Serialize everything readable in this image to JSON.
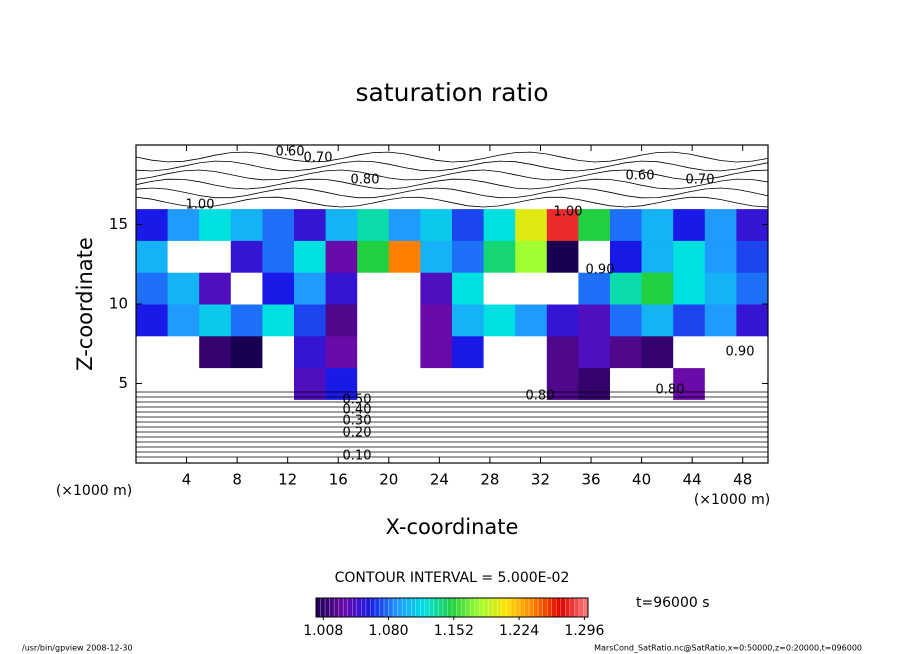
{
  "chart_data": {
    "type": "contour",
    "title": "saturation ratio",
    "x_label": "X-coordinate",
    "y_label": "Z-coordinate",
    "x_unit": "(×1000 m)",
    "y_unit": "(×1000 m)",
    "xlim": [
      0,
      50
    ],
    "ylim": [
      0,
      20
    ],
    "xticks": [
      4,
      8,
      12,
      16,
      20,
      24,
      28,
      32,
      36,
      40,
      44,
      48
    ],
    "yticks": [
      5,
      10,
      15
    ],
    "x": [
      1.25,
      3.75,
      6.25,
      8.75,
      11.25,
      13.75,
      16.25,
      18.75,
      21.25,
      23.75,
      26.25,
      28.75,
      31.25,
      33.75,
      36.25,
      38.75,
      41.25,
      43.75,
      46.25,
      48.75
    ],
    "z": [
      1,
      3,
      5,
      7,
      9,
      11,
      13,
      15,
      17,
      19
    ],
    "values": [
      [
        0.12,
        0.12,
        0.12,
        0.12,
        0.12,
        0.12,
        0.12,
        0.12,
        0.12,
        0.12,
        0.12,
        0.12,
        0.12,
        0.12,
        0.12,
        0.12,
        0.12,
        0.12,
        0.12,
        0.12
      ],
      [
        0.45,
        0.45,
        0.45,
        0.45,
        0.45,
        0.45,
        0.45,
        0.45,
        0.45,
        0.45,
        0.45,
        0.45,
        0.45,
        0.45,
        0.45,
        0.45,
        0.45,
        0.45,
        0.45,
        0.45
      ],
      [
        0.95,
        0.96,
        0.97,
        0.96,
        0.98,
        1.04,
        1.06,
        0.99,
        0.92,
        0.97,
        0.96,
        0.98,
        0.97,
        1.02,
        1.01,
        0.97,
        0.98,
        1.03,
        0.96,
        0.95
      ],
      [
        0.97,
        0.98,
        1.01,
        1.0,
        0.99,
        1.05,
        1.03,
        0.9,
        0.88,
        1.03,
        1.06,
        0.99,
        0.98,
        1.02,
        1.04,
        1.02,
        1.01,
        0.98,
        0.97,
        0.97
      ],
      [
        1.06,
        1.09,
        1.11,
        1.08,
        1.12,
        1.07,
        1.02,
        0.9,
        0.92,
        1.03,
        1.1,
        1.12,
        1.09,
        1.05,
        1.04,
        1.08,
        1.1,
        1.07,
        1.09,
        1.05
      ],
      [
        1.08,
        1.1,
        1.04,
        0.98,
        1.06,
        1.09,
        1.05,
        0.93,
        0.95,
        1.04,
        1.12,
        0.97,
        0.96,
        0.98,
        1.08,
        1.13,
        1.15,
        1.12,
        1.1,
        1.08
      ],
      [
        1.1,
        0.97,
        0.96,
        1.05,
        1.08,
        1.12,
        1.03,
        1.15,
        1.24,
        1.1,
        1.08,
        1.14,
        1.18,
        1.0,
        0.98,
        1.06,
        1.1,
        1.12,
        1.09,
        1.07
      ],
      [
        1.06,
        1.09,
        1.12,
        1.1,
        1.08,
        1.05,
        1.1,
        1.13,
        1.09,
        1.11,
        1.07,
        1.12,
        1.2,
        1.28,
        1.15,
        1.08,
        1.1,
        1.06,
        1.09,
        1.05
      ],
      [
        0.93,
        0.92,
        0.94,
        0.95,
        0.93,
        0.96,
        0.92,
        0.97,
        0.94,
        0.93,
        0.92,
        0.91,
        0.94,
        0.93,
        0.92,
        0.9,
        0.91,
        0.9,
        0.9,
        0.89
      ],
      [
        0.72,
        0.65,
        0.68,
        0.7,
        0.62,
        0.66,
        0.7,
        0.75,
        0.72,
        0.7,
        0.68,
        0.72,
        0.7,
        0.65,
        0.62,
        0.66,
        0.7,
        0.68,
        0.7,
        0.72
      ]
    ],
    "contour_labels": [
      "0.60",
      "0.70",
      "0.80",
      "1.00",
      "0.60",
      "0.70",
      "0.90",
      "1.00",
      "0.80",
      "0.50",
      "0.40",
      "0.30",
      "0.20",
      "0.10",
      "0.80",
      "0.90"
    ],
    "contour_interval": "CONTOUR INTERVAL = 5.000E-02",
    "time_label": "t=96000 s",
    "clim": [
      1.0,
      1.3
    ],
    "colorbar_ticks": [
      1.008,
      {
        "value": 1.08,
        "label": "1.080"
      },
      1.152,
      1.224,
      1.296
    ],
    "colormap": [
      "#1a0050",
      "#6a0aa8",
      "#1a1ae8",
      "#1f9bff",
      "#00e0e0",
      "#20d040",
      "#a0ff30",
      "#ffe000",
      "#ff8000",
      "#e00000",
      "#ff8080"
    ],
    "footer_left": "/usr/bin/gpview  2008-12-30",
    "footer_right": "MarsCond_SatRatio.nc@SatRatio,x=0:50000,z=0:20000,t=096000"
  }
}
